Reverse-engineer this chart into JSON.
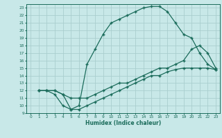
{
  "title": "",
  "xlabel": "Humidex (Indice chaleur)",
  "xlim": [
    -0.5,
    23.5
  ],
  "ylim": [
    9,
    23.5
  ],
  "xticks": [
    0,
    1,
    2,
    3,
    4,
    5,
    6,
    7,
    8,
    9,
    10,
    11,
    12,
    13,
    14,
    15,
    16,
    17,
    18,
    19,
    20,
    21,
    22,
    23
  ],
  "yticks": [
    9,
    10,
    11,
    12,
    13,
    14,
    15,
    16,
    17,
    18,
    19,
    20,
    21,
    22,
    23
  ],
  "bg_color": "#c8e8e8",
  "grid_color": "#aacece",
  "line_color": "#1a6b5a",
  "curve1_x": [
    1,
    2,
    3,
    4,
    5,
    6,
    7,
    8,
    9,
    10,
    11,
    12,
    13,
    14,
    15,
    16,
    17,
    18,
    19,
    20,
    21,
    22,
    23
  ],
  "curve1_y": [
    12,
    12,
    11.5,
    10,
    9.5,
    10,
    15.5,
    17.5,
    19.5,
    21,
    21.5,
    22,
    22.5,
    23,
    23.2,
    23.2,
    22.5,
    21,
    19.5,
    19,
    17,
    15.5,
    14.8
  ],
  "curve2_x": [
    1,
    2,
    3,
    4,
    5,
    6,
    7,
    8,
    9,
    10,
    11,
    12,
    13,
    14,
    15,
    16,
    17,
    18,
    19,
    20,
    21,
    22,
    23
  ],
  "curve2_y": [
    12,
    12,
    12,
    11.5,
    11,
    11,
    11,
    11.5,
    12,
    12.5,
    13,
    13,
    13.5,
    14,
    14.5,
    15,
    15,
    15.5,
    16,
    17.5,
    18,
    17,
    15
  ],
  "curve3_x": [
    1,
    2,
    3,
    4,
    5,
    6,
    7,
    8,
    9,
    10,
    11,
    12,
    13,
    14,
    15,
    16,
    17,
    18,
    19,
    20,
    21,
    22,
    23
  ],
  "curve3_y": [
    12,
    12,
    12,
    11.5,
    9.5,
    9.5,
    10,
    10.5,
    11,
    11.5,
    12,
    12.5,
    13,
    13.5,
    14,
    14,
    14.5,
    14.8,
    15,
    15,
    15,
    15,
    14.8
  ]
}
